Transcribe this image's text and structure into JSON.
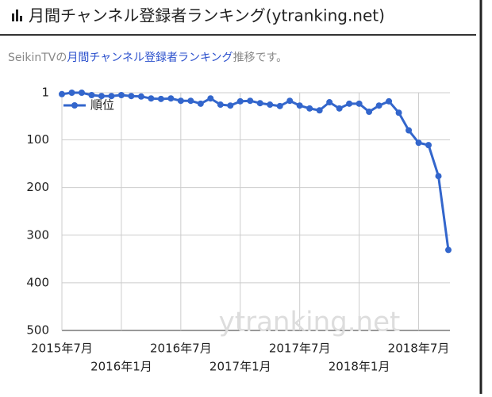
{
  "header": {
    "title": "月間チャンネル登録者ランキング(ytranking.net)"
  },
  "subtitle": {
    "prefix": "SeikinTVの",
    "link": "月間チャンネル登録者ランキング",
    "suffix": "推移です。"
  },
  "chart_data": {
    "type": "line",
    "x": [
      "2015-07",
      "2015-08",
      "2015-09",
      "2015-10",
      "2015-11",
      "2015-12",
      "2016-01",
      "2016-02",
      "2016-03",
      "2016-04",
      "2016-05",
      "2016-06",
      "2016-07",
      "2016-08",
      "2016-09",
      "2016-10",
      "2016-11",
      "2016-12",
      "2017-01",
      "2017-02",
      "2017-03",
      "2017-04",
      "2017-05",
      "2017-06",
      "2017-07",
      "2017-08",
      "2017-09",
      "2017-10",
      "2017-11",
      "2017-12",
      "2018-01",
      "2018-02",
      "2018-03",
      "2018-04",
      "2018-05",
      "2018-06",
      "2018-07",
      "2018-08",
      "2018-09",
      "2018-10"
    ],
    "series": [
      {
        "name": "順位",
        "color": "#3366cc",
        "values": [
          4,
          1,
          1,
          6,
          8,
          8,
          6,
          8,
          9,
          13,
          14,
          13,
          18,
          18,
          24,
          13,
          26,
          28,
          19,
          18,
          23,
          26,
          29,
          18,
          28,
          34,
          38,
          21,
          34,
          24,
          24,
          41,
          28,
          19,
          43,
          80,
          106,
          111,
          176,
          331
        ]
      }
    ],
    "xlim": [
      "2015-07",
      "2018-10"
    ],
    "xticks": [
      {
        "value": "2015-07",
        "label": "2015年7月"
      },
      {
        "value": "2016-01",
        "label": "2016年1月"
      },
      {
        "value": "2016-07",
        "label": "2016年7月"
      },
      {
        "value": "2017-01",
        "label": "2017年1月"
      },
      {
        "value": "2017-07",
        "label": "2017年7月"
      },
      {
        "value": "2018-01",
        "label": "2018年1月"
      },
      {
        "value": "2018-07",
        "label": "2018年7月"
      }
    ],
    "ylim": [
      1,
      500
    ],
    "y_reversed": true,
    "yticks": [
      1,
      100,
      200,
      300,
      400,
      500
    ],
    "grid": true,
    "legend": "top-left",
    "watermark": "ytranking.net"
  }
}
